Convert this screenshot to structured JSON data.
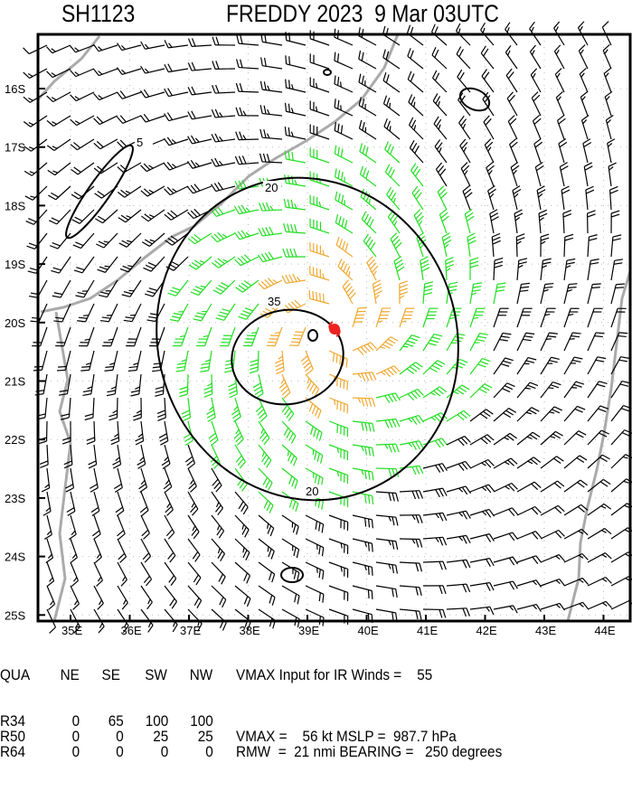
{
  "header": {
    "storm_id": "SH1123",
    "title": "FREDDY 2023  9 Mar 03UTC"
  },
  "chart_data": {
    "type": "wind barb map",
    "lat_ticks": [
      "16S",
      "17S",
      "18S",
      "19S",
      "20S",
      "21S",
      "22S",
      "23S",
      "24S",
      "25S"
    ],
    "lon_ticks": [
      "35E",
      "36E",
      "37E",
      "38E",
      "39E",
      "40E",
      "41E",
      "42E",
      "43E",
      "44E"
    ],
    "lat_range": [
      -25,
      -15.1
    ],
    "lon_range": [
      34.5,
      44.5
    ],
    "contour_labels": [
      "5",
      "20",
      "20",
      "35"
    ],
    "center": {
      "lon": 39.4,
      "lat": -20.1
    },
    "grid": "dotted",
    "colors": {
      "weak": "#000000",
      "gale": "#22dd22",
      "storm": "#f0a830",
      "coast": "#aaaaaa",
      "center_symbol": "#ee2222"
    }
  },
  "table": {
    "headers": [
      "QUA",
      "NE",
      "SE",
      "SW",
      "NW"
    ],
    "rows": [
      {
        "label": "R34",
        "values": [
          "0",
          "65",
          "100",
          "100"
        ]
      },
      {
        "label": "R50",
        "values": [
          "0",
          "0",
          "25",
          "25"
        ]
      },
      {
        "label": "R64",
        "values": [
          "0",
          "0",
          "0",
          "0"
        ]
      }
    ],
    "vmax_ir": "VMAX Input for IR Winds =    55",
    "vmax_mslp": "VMAX =    56 kt MSLP =  987.7 hPa",
    "rmw_bearing": "RMW  =  21 nmi BEARING =   250 degrees"
  }
}
